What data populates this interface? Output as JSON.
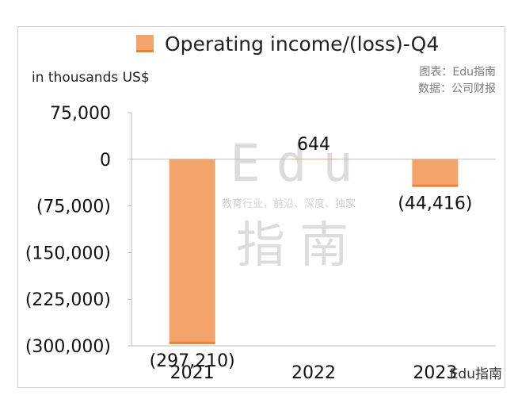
{
  "legend": {
    "label": "Operating income/(loss)-Q4",
    "color": "#F4A46A"
  },
  "unit_label": "in thousands US$",
  "credits": {
    "chart": "图表：Edu指南",
    "data": "数据：公司财报"
  },
  "watermark": {
    "brand_latin": "Edu",
    "brand_cjk": "指南",
    "slogan": "教育行业，前沿、深度、独家"
  },
  "footer_credit": "Edu指南",
  "chart_data": {
    "type": "bar",
    "title": "",
    "xlabel": "",
    "ylabel": "in thousands US$",
    "categories": [
      "2021",
      "2022",
      "2023"
    ],
    "series": [
      {
        "name": "Operating income/(loss)-Q4",
        "values": [
          -297210,
          644,
          -44416
        ],
        "labels": [
          "(297,210)",
          "644",
          "(44,416)"
        ]
      }
    ],
    "ylim": [
      -300000,
      75000
    ],
    "yticks": [
      75000,
      0,
      -75000,
      -150000,
      -225000,
      -300000
    ],
    "ytick_labels": [
      "75,000",
      "0",
      "(75,000)",
      "(150,000)",
      "(225,000)",
      "(300,000)"
    ],
    "grid": false,
    "legend_position": "top",
    "colors": {
      "bar": "#F4A46A",
      "bar_edge": "#E8853B",
      "axis": "#bdbdbd"
    }
  }
}
